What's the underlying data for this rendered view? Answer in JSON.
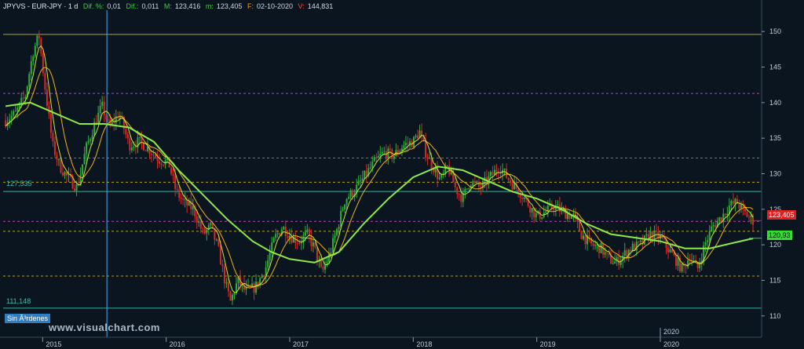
{
  "header": {
    "title": "JPYVS - EUR-JPY · 1 d",
    "dif_pct_label": "Dif. %:",
    "dif_pct_value": "0,01",
    "dif_label": "Dif.:",
    "dif_value": "0,011",
    "m_label": "M:",
    "m_value": "123,416",
    "min_label": "m:",
    "min_value": "123,405",
    "date_label": "F:",
    "date_value": "02-10-2020",
    "v_label": "V:",
    "v_value": "144,831"
  },
  "orders_label": "Sin Ã³rdenes",
  "watermark": "www.visualchart.com",
  "price_tags": {
    "current": "123,405",
    "ma_long": "120,93"
  },
  "level_labels": {
    "upper_cyan": "127,535",
    "lower_cyan": "111,148"
  },
  "colors": {
    "background": "#0b1520",
    "bull": "#2fae3a",
    "bear": "#d42a2a",
    "ma_long": "#8de84a",
    "ma_mid": "#f0b020",
    "ma_short": "#c8e830",
    "level_yellow": "#c8b030",
    "level_cyan": "#39c0b0",
    "level_magenta": "#c050c0",
    "cursor": "#4aa8e8"
  },
  "chart_data": {
    "type": "candlestick",
    "title": "EUR-JPY",
    "timeframe": "1 d",
    "x_range": [
      "2014-09",
      "2020-10"
    ],
    "ylim": [
      107,
      153
    ],
    "y_ticks": [
      110,
      115,
      120,
      125,
      130,
      135,
      140,
      145,
      150
    ],
    "x_tick_labels": [
      "2015",
      "2016",
      "2017",
      "2018",
      "2019",
      "2020"
    ],
    "x_ticks": [
      2015.0,
      2016.0,
      2017.0,
      2018.0,
      2019.0,
      2020.0
    ],
    "extra_x_label": {
      "text": "2020",
      "x": 2020.0
    },
    "price_path": [
      [
        2014.7,
        137.5
      ],
      [
        2014.78,
        138.5
      ],
      [
        2014.86,
        141.0
      ],
      [
        2014.92,
        147.0
      ],
      [
        2014.97,
        149.5
      ],
      [
        2015.02,
        142.0
      ],
      [
        2015.08,
        134.0
      ],
      [
        2015.14,
        131.0
      ],
      [
        2015.2,
        129.5
      ],
      [
        2015.28,
        128.0
      ],
      [
        2015.35,
        133.5
      ],
      [
        2015.42,
        137.0
      ],
      [
        2015.48,
        139.5
      ],
      [
        2015.54,
        136.5
      ],
      [
        2015.62,
        138.5
      ],
      [
        2015.7,
        134.0
      ],
      [
        2015.78,
        134.5
      ],
      [
        2015.86,
        133.5
      ],
      [
        2015.94,
        132.0
      ],
      [
        2016.02,
        131.5
      ],
      [
        2016.08,
        127.5
      ],
      [
        2016.14,
        126.0
      ],
      [
        2016.22,
        125.0
      ],
      [
        2016.3,
        121.5
      ],
      [
        2016.36,
        122.5
      ],
      [
        2016.42,
        119.5
      ],
      [
        2016.48,
        114.5
      ],
      [
        2016.52,
        112.0
      ],
      [
        2016.58,
        115.0
      ],
      [
        2016.64,
        113.5
      ],
      [
        2016.72,
        114.0
      ],
      [
        2016.8,
        116.5
      ],
      [
        2016.88,
        121.0
      ],
      [
        2016.94,
        122.5
      ],
      [
        2017.02,
        121.0
      ],
      [
        2017.08,
        120.5
      ],
      [
        2017.14,
        121.5
      ],
      [
        2017.2,
        119.5
      ],
      [
        2017.26,
        116.0
      ],
      [
        2017.32,
        118.5
      ],
      [
        2017.38,
        122.0
      ],
      [
        2017.45,
        126.5
      ],
      [
        2017.52,
        127.5
      ],
      [
        2017.6,
        129.5
      ],
      [
        2017.68,
        131.5
      ],
      [
        2017.76,
        133.0
      ],
      [
        2017.84,
        132.5
      ],
      [
        2017.92,
        134.0
      ],
      [
        2018.0,
        134.5
      ],
      [
        2018.05,
        136.0
      ],
      [
        2018.1,
        133.0
      ],
      [
        2018.16,
        131.0
      ],
      [
        2018.22,
        129.0
      ],
      [
        2018.28,
        131.0
      ],
      [
        2018.34,
        128.0
      ],
      [
        2018.4,
        126.5
      ],
      [
        2018.46,
        129.0
      ],
      [
        2018.54,
        128.0
      ],
      [
        2018.62,
        129.5
      ],
      [
        2018.7,
        131.0
      ],
      [
        2018.78,
        129.0
      ],
      [
        2018.86,
        127.5
      ],
      [
        2018.94,
        125.5
      ],
      [
        2019.0,
        124.0
      ],
      [
        2019.06,
        124.5
      ],
      [
        2019.14,
        125.5
      ],
      [
        2019.22,
        124.5
      ],
      [
        2019.3,
        124.0
      ],
      [
        2019.36,
        121.5
      ],
      [
        2019.44,
        120.0
      ],
      [
        2019.52,
        119.5
      ],
      [
        2019.58,
        118.0
      ],
      [
        2019.64,
        117.5
      ],
      [
        2019.7,
        118.5
      ],
      [
        2019.76,
        119.5
      ],
      [
        2019.84,
        120.0
      ],
      [
        2019.92,
        121.5
      ],
      [
        2020.0,
        121.0
      ],
      [
        2020.06,
        119.5
      ],
      [
        2020.12,
        118.0
      ],
      [
        2020.18,
        116.5
      ],
      [
        2020.24,
        118.5
      ],
      [
        2020.3,
        116.5
      ],
      [
        2020.36,
        120.0
      ],
      [
        2020.42,
        122.5
      ],
      [
        2020.5,
        124.0
      ],
      [
        2020.56,
        125.5
      ],
      [
        2020.62,
        126.0
      ],
      [
        2020.68,
        124.5
      ],
      [
        2020.75,
        123.4
      ]
    ],
    "series": [
      {
        "name": "ma_long",
        "values": [
          [
            2014.7,
            139.5
          ],
          [
            2014.9,
            140.0
          ],
          [
            2015.1,
            138.5
          ],
          [
            2015.3,
            137.0
          ],
          [
            2015.5,
            137.0
          ],
          [
            2015.7,
            136.5
          ],
          [
            2015.9,
            134.5
          ],
          [
            2016.1,
            130.5
          ],
          [
            2016.3,
            127.0
          ],
          [
            2016.5,
            123.5
          ],
          [
            2016.7,
            120.5
          ],
          [
            2016.85,
            119.0
          ],
          [
            2017.0,
            118.0
          ],
          [
            2017.2,
            117.5
          ],
          [
            2017.4,
            119.0
          ],
          [
            2017.6,
            123.0
          ],
          [
            2017.8,
            126.5
          ],
          [
            2018.0,
            129.5
          ],
          [
            2018.2,
            131.0
          ],
          [
            2018.4,
            130.5
          ],
          [
            2018.6,
            129.0
          ],
          [
            2018.8,
            127.5
          ],
          [
            2019.0,
            126.5
          ],
          [
            2019.2,
            125.0
          ],
          [
            2019.4,
            123.0
          ],
          [
            2019.6,
            121.5
          ],
          [
            2019.8,
            121.0
          ],
          [
            2020.0,
            120.5
          ],
          [
            2020.2,
            119.5
          ],
          [
            2020.4,
            119.5
          ],
          [
            2020.6,
            120.3
          ],
          [
            2020.75,
            120.9
          ]
        ]
      },
      {
        "name": "ma_mid",
        "values": []
      },
      {
        "name": "ma_short",
        "values": []
      }
    ],
    "levels": [
      {
        "name": "level-yellow",
        "y": 149.6,
        "color": "#c8b030",
        "style": "solid"
      },
      {
        "name": "level-magenta-1",
        "y": 141.3,
        "color": "#c050c0",
        "style": "dashed"
      },
      {
        "name": "level-magenta-2",
        "y": 132.2,
        "color": "#c050c0",
        "style": "dashed"
      },
      {
        "name": "level-yellow-dash-1",
        "y": 128.8,
        "color": "#c8b030",
        "style": "dashed"
      },
      {
        "name": "level-cyan-1",
        "y": 127.5,
        "color": "#39c0b0",
        "style": "solid"
      },
      {
        "name": "level-magenta-3",
        "y": 123.3,
        "color": "#c050c0",
        "style": "dashed"
      },
      {
        "name": "level-yellow-dash-2",
        "y": 121.9,
        "color": "#c8b030",
        "style": "dashed"
      },
      {
        "name": "level-yellow-dash-3",
        "y": 115.6,
        "color": "#c8b030",
        "style": "dashed"
      },
      {
        "name": "level-cyan-2",
        "y": 111.1,
        "color": "#39c0b0",
        "style": "solid"
      }
    ],
    "cursor_x": 2015.52,
    "grid": false
  }
}
